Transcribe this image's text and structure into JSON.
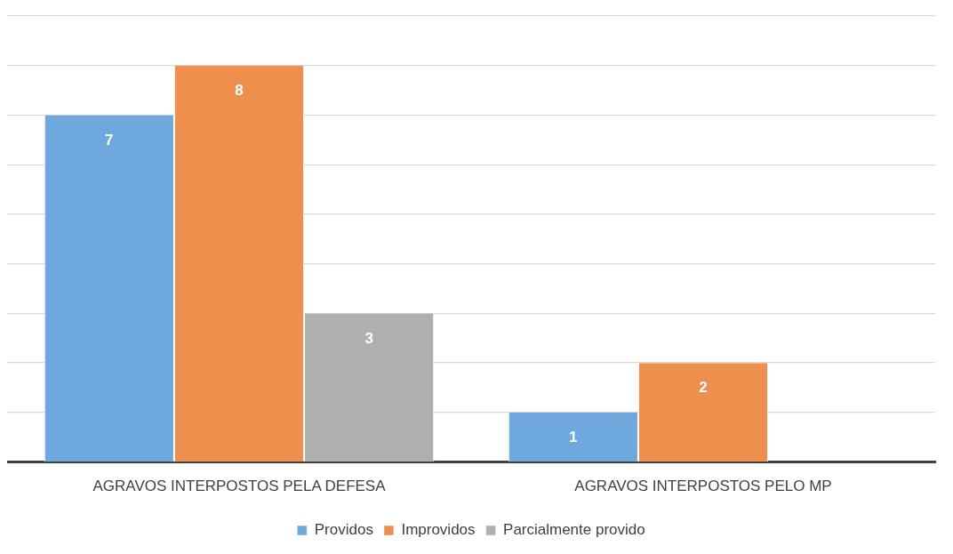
{
  "chart_data": {
    "type": "bar",
    "categories": [
      "AGRAVOS INTERPOSTOS PELA DEFESA",
      "AGRAVOS INTERPOSTOS PELO MP"
    ],
    "series": [
      {
        "name": "Providos",
        "color": "#6fa8dc",
        "values": [
          7,
          1
        ]
      },
      {
        "name": "Improvidos",
        "color": "#ee8f4e",
        "values": [
          8,
          2
        ]
      },
      {
        "name": "Parcialmente provido",
        "color": "#afafaf",
        "values": [
          3,
          null
        ]
      }
    ],
    "ylim": [
      0,
      9
    ],
    "yticks": [
      {
        "value": 0,
        "label": null
      },
      {
        "value": 1,
        "label": null
      },
      {
        "value": 2,
        "label": null
      },
      {
        "value": 3,
        "label": null
      },
      {
        "value": 4,
        "label": null
      },
      {
        "value": 5,
        "label": null
      },
      {
        "value": 6,
        "label": null
      },
      {
        "value": 7,
        "label": null
      },
      {
        "value": 8,
        "label": null
      },
      {
        "value": 9,
        "label": null
      }
    ],
    "tick_labels": "x",
    "grid": "y",
    "legend": "bottom",
    "data_labels": true
  }
}
